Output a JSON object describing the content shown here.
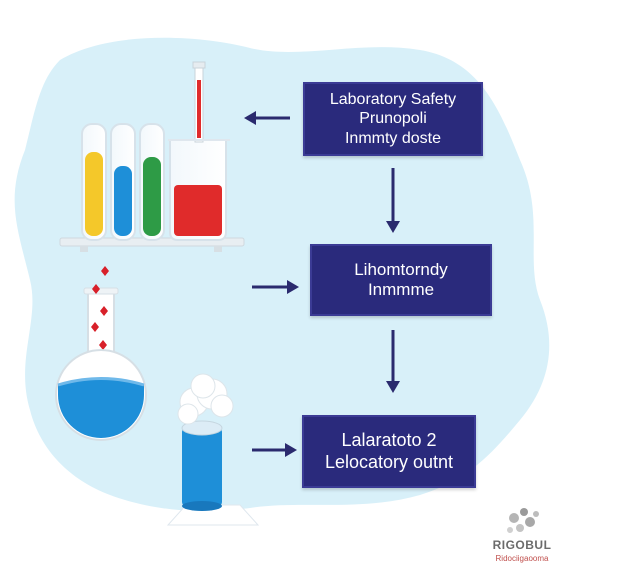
{
  "steps": [
    {
      "line1": "Laboratory Safety",
      "line2": "Prunopoli",
      "line3": "Inmmty doste"
    },
    {
      "line1": "Lihomtorndy",
      "line2": "Inmmme"
    },
    {
      "line1": "Lalaratoto 2",
      "line2": "Lelocatory outnt"
    }
  ],
  "logo": {
    "text": "RIGOBUL",
    "subtext": "Ridociigaooma"
  },
  "colors": {
    "box_fill": "#2a2a7c",
    "arrow": "#2a2a6e",
    "blob": "#d6eff8",
    "yellow_liquid": "#f4c82a",
    "blue_liquid": "#1e8fd8",
    "green_liquid": "#2e9b46",
    "red_liquid": "#e02b2b"
  }
}
